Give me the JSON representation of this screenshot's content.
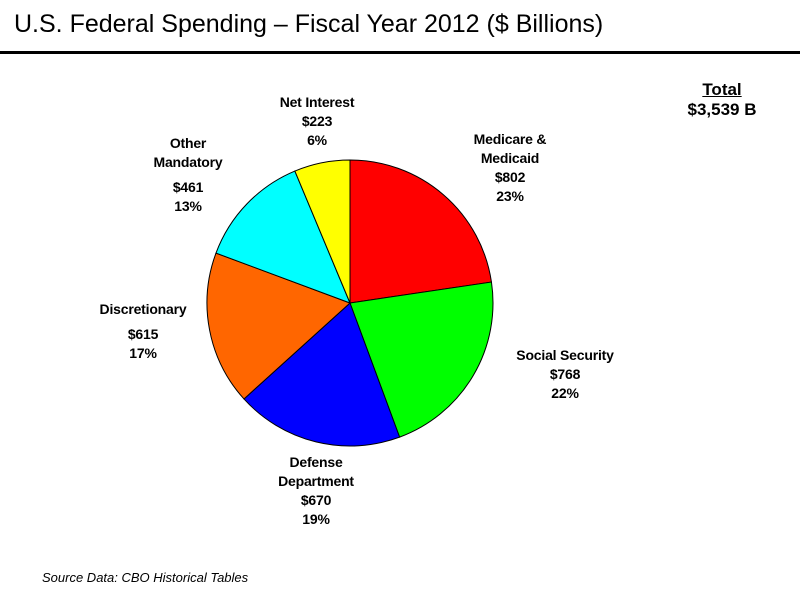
{
  "chart_data": {
    "type": "pie",
    "title": "U.S. Federal Spending – Fiscal Year 2012 ($ Billions)",
    "total_label": "Total",
    "total_value": "$3,539 B",
    "source": "Source Data: CBO Historical Tables",
    "start": "top",
    "direction": "clockwise",
    "slices": [
      {
        "name_lines": [
          "Medicare &",
          "Medicaid"
        ],
        "value": 802,
        "value_label": "$802",
        "percent_label": "23%",
        "color": "#ff0000"
      },
      {
        "name_lines": [
          "Social Security"
        ],
        "value": 768,
        "value_label": "$768",
        "percent_label": "22%",
        "color": "#00ff00"
      },
      {
        "name_lines": [
          "Defense",
          "Department"
        ],
        "value": 670,
        "value_label": "$670",
        "percent_label": "19%",
        "color": "#0000ff"
      },
      {
        "name_lines": [
          "Discretionary"
        ],
        "value": 615,
        "value_label": "$615",
        "percent_label": "17%",
        "color": "#ff6600"
      },
      {
        "name_lines": [
          "Other",
          "Mandatory"
        ],
        "value": 461,
        "value_label": "$461",
        "percent_label": "13%",
        "color": "#00ffff"
      },
      {
        "name_lines": [
          "Net Interest"
        ],
        "value": 223,
        "value_label": "$223",
        "percent_label": "6%",
        "color": "#ffff00"
      }
    ]
  }
}
